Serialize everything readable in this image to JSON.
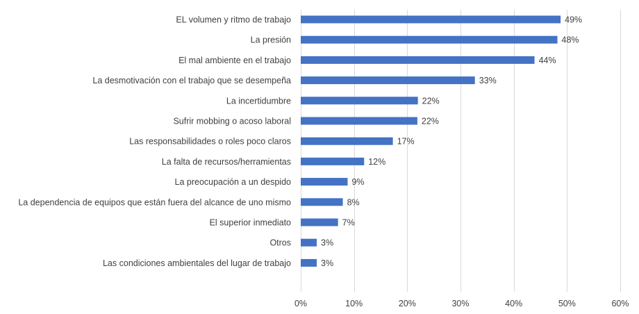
{
  "chart_data": {
    "type": "bar",
    "orientation": "horizontal",
    "title": "",
    "xlabel": "",
    "ylabel": "",
    "categories": [
      "EL volumen y ritmo de trabajo",
      "La presión",
      "El mal ambiente en el trabajo",
      "La desmotivación con el trabajo que se desempeña",
      "La incertidumbre",
      "Sufrir mobbing o acoso laboral",
      "Las responsabilidades o roles poco claros",
      "La falta de recursos/herramientas",
      "La preocupación a un despido",
      "La dependencia de equipos que están fuera del alcance de uno mismo",
      "El superior inmediato",
      "Otros",
      "Las condiciones ambientales del lugar de trabajo"
    ],
    "values": [
      48.8,
      48.2,
      43.9,
      32.7,
      22.0,
      21.9,
      17.3,
      11.9,
      8.8,
      7.9,
      7.0,
      3.0,
      3.0
    ],
    "value_labels": [
      "49%",
      "48%",
      "44%",
      "33%",
      "22%",
      "22%",
      "17%",
      "12%",
      "9%",
      "8%",
      "7%",
      "3%",
      "3%"
    ],
    "xlim": [
      0,
      60
    ],
    "xticks": [
      0,
      10,
      20,
      30,
      40,
      50,
      60
    ],
    "xtick_labels": [
      "0%",
      "10%",
      "20%",
      "30%",
      "40%",
      "50%",
      "60%"
    ],
    "grid": true,
    "legend": "none",
    "bar_color": "#4472c4"
  }
}
